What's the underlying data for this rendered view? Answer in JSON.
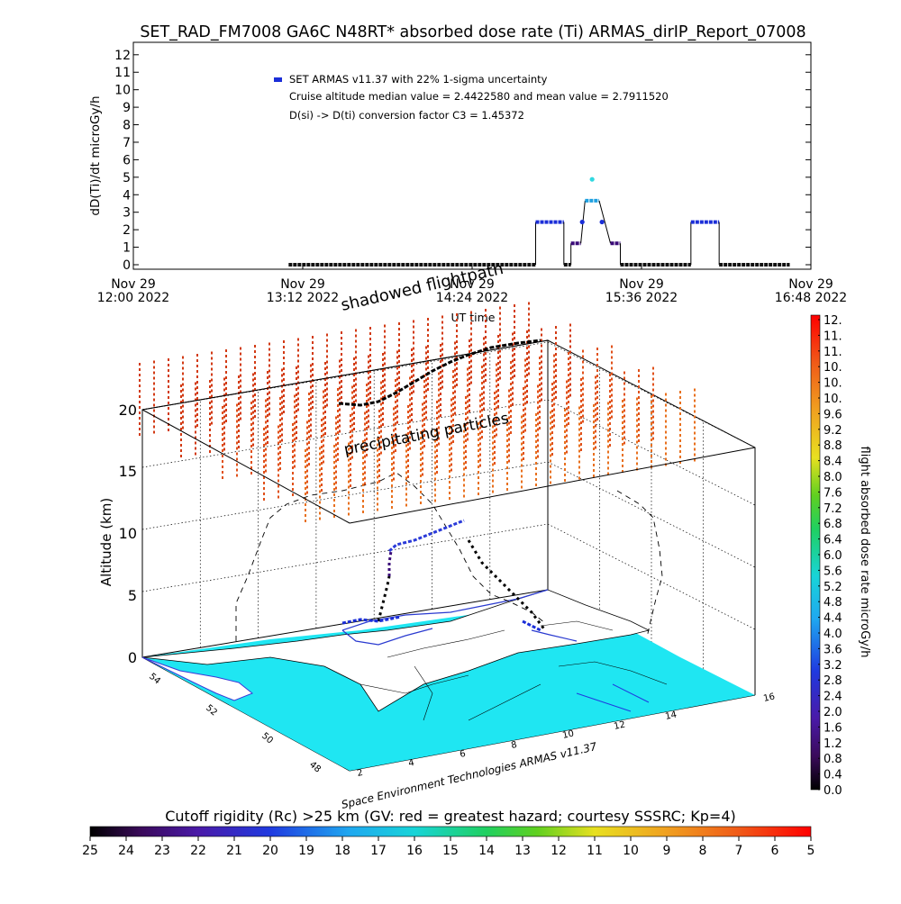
{
  "header": {
    "title": "SET_RAD_FM7008  GA6C N48RT* absorbed dose rate (Ti) ARMAS_dirIP_Report_07008"
  },
  "chart_data": [
    {
      "type": "scatter",
      "ylabel": "dD(Ti)/dt microGy/h",
      "xlabel": "UT time",
      "ylim": [
        0,
        12
      ],
      "yticks": [
        "0",
        "1",
        "2",
        "3",
        "4",
        "5",
        "6",
        "7",
        "8",
        "9",
        "10",
        "11",
        "12"
      ],
      "xlim_hours": [
        12.0,
        16.8
      ],
      "xticks": [
        {
          "date": "Nov 29",
          "time": "12:00 2022",
          "hour": 12.0
        },
        {
          "date": "Nov 29",
          "time": "13:12 2022",
          "hour": 13.2
        },
        {
          "date": "Nov 29",
          "time": "14:24 2022",
          "hour": 14.4
        },
        {
          "date": "Nov 29",
          "time": "15:36 2022",
          "hour": 15.6
        },
        {
          "date": "Nov 29",
          "time": "16:48 2022",
          "hour": 16.8
        }
      ],
      "legend": {
        "placement": "top-left",
        "series": "SET ARMAS v11.37 with 22% 1-sigma uncertainty",
        "line2": "Cruise altitude median value = 2.4422580 and mean value = 2.7911520",
        "line3": "D(si) -> D(ti) conversion factor C3 = 1.45372"
      },
      "series": [
        {
          "segments": [
            {
              "t0": 13.1,
              "t1": 14.85,
              "v": 0.0
            },
            {
              "t0": 14.85,
              "t1": 15.05,
              "v": 2.44
            },
            {
              "t0": 15.05,
              "t1": 15.1,
              "v": 0.0
            },
            {
              "t0": 15.1,
              "t1": 15.17,
              "v": 1.22
            },
            {
              "t0": 15.2,
              "t1": 15.3,
              "v": 3.66
            },
            {
              "t0": 15.38,
              "t1": 15.45,
              "v": 1.22
            },
            {
              "t0": 15.45,
              "t1": 15.95,
              "v": 0.0
            },
            {
              "t0": 15.95,
              "t1": 16.15,
              "v": 2.44
            },
            {
              "t0": 16.15,
              "t1": 16.65,
              "v": 0.0
            }
          ],
          "points": [
            {
              "t": 15.18,
              "v": 2.44
            },
            {
              "t": 15.25,
              "v": 4.88
            },
            {
              "t": 15.32,
              "v": 2.44
            }
          ]
        }
      ]
    },
    {
      "type": "scatter3d",
      "zlabel": "Altitude (km)",
      "zticks": [
        "0",
        "5",
        "10",
        "15",
        "20"
      ],
      "lat_ticks": [
        "54",
        "52",
        "50",
        "48"
      ],
      "lon_ticks": [
        "2",
        "4",
        "6",
        "8",
        "10",
        "12",
        "14",
        "16"
      ],
      "annotations": {
        "shadowed": "shadowed flightpath",
        "precipitating": "precipitating particles",
        "credit": "Space Environment Technologies ARMAS v11.37"
      }
    },
    {
      "type": "colorbar",
      "label": "flight absorbed dose rate microGy/h",
      "ticks": [
        "12.",
        "11.",
        "11.",
        "10.",
        "10.",
        "10.",
        "9.6",
        "9.2",
        "8.8",
        "8.4",
        "8.0",
        "7.6",
        "7.2",
        "6.8",
        "6.4",
        "6.0",
        "5.6",
        "5.2",
        "4.8",
        "4.4",
        "4.0",
        "3.6",
        "3.2",
        "2.8",
        "2.4",
        "2.0",
        "1.6",
        "1.2",
        "0.8",
        "0.4",
        "0.0"
      ]
    },
    {
      "type": "colorbar",
      "label": "Cutoff rigidity (Rc) >25 km (GV: red = greatest hazard; courtesy SSSRC; Kp=4)",
      "ticks": [
        "25",
        "24",
        "23",
        "22",
        "21",
        "20",
        "19",
        "18",
        "17",
        "16",
        "15",
        "14",
        "13",
        "12",
        "11",
        "10",
        "9",
        "8",
        "7",
        "6",
        "5"
      ]
    }
  ],
  "colors": {
    "ocean": "#1fe6f2",
    "land": "#ffffff",
    "precip_red": "#d23a14",
    "precip_orange": "#e8661e",
    "series_blue": "#1b2ed8"
  }
}
